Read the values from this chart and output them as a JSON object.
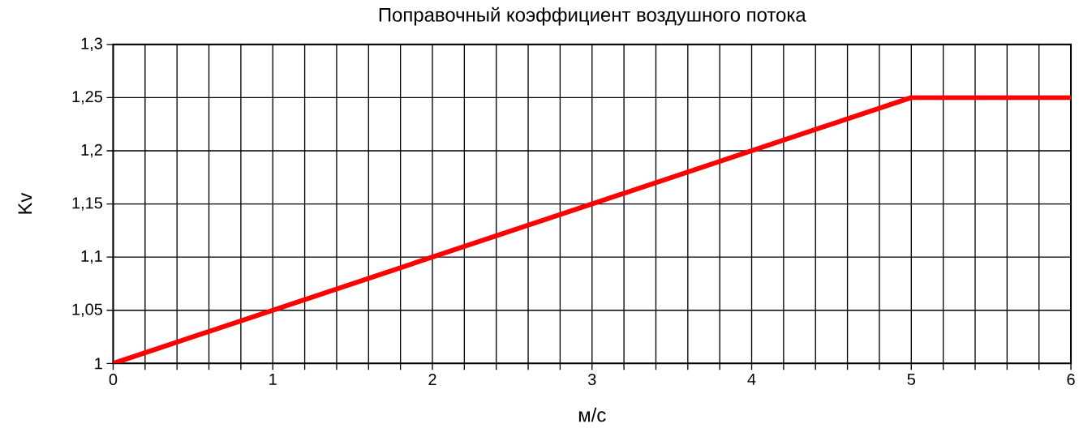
{
  "chart_data": {
    "type": "line",
    "title": "Поправочный коэффициент воздушного потока",
    "xlabel": "м/с",
    "ylabel": "Kv",
    "x": [
      0,
      5,
      6
    ],
    "series": [
      {
        "color": "#ff0000",
        "values": [
          1,
          1.25,
          1.25
        ]
      }
    ],
    "xlim": [
      0,
      6
    ],
    "xticks": [
      0,
      {
        "value": 0.2,
        "label": null
      },
      {
        "value": 0.4,
        "label": null
      },
      {
        "value": 0.6,
        "label": null
      },
      {
        "value": 0.8,
        "label": null
      },
      1,
      {
        "value": 1.2,
        "label": null
      },
      {
        "value": 1.4,
        "label": null
      },
      {
        "value": 1.6,
        "label": null
      },
      {
        "value": 1.8,
        "label": null
      },
      2,
      {
        "value": 2.2,
        "label": null
      },
      {
        "value": 2.4,
        "label": null
      },
      {
        "value": 2.6,
        "label": null
      },
      {
        "value": 2.8,
        "label": null
      },
      3,
      {
        "value": 3.2,
        "label": null
      },
      {
        "value": 3.4,
        "label": null
      },
      {
        "value": 3.6,
        "label": null
      },
      {
        "value": 3.8,
        "label": null
      },
      4,
      {
        "value": 4.2,
        "label": null
      },
      {
        "value": 4.4,
        "label": null
      },
      {
        "value": 4.6,
        "label": null
      },
      {
        "value": 4.8,
        "label": null
      },
      5,
      {
        "value": 5.2,
        "label": null
      },
      {
        "value": 5.4,
        "label": null
      },
      {
        "value": 5.6,
        "label": null
      },
      {
        "value": 5.8,
        "label": null
      },
      6
    ],
    "ylim": [
      1,
      1.3
    ],
    "yticks": [
      {
        "value": 1,
        "label": "1"
      },
      {
        "value": 1.05,
        "label": "1,05"
      },
      {
        "value": 1.1,
        "label": "1,1"
      },
      {
        "value": 1.15,
        "label": "1,15"
      },
      {
        "value": 1.2,
        "label": "1,2"
      },
      {
        "value": 1.25,
        "label": "1,25"
      },
      {
        "value": 1.3,
        "label": "1,3"
      }
    ],
    "grid": true,
    "marker": "none",
    "line_style": "solid"
  }
}
